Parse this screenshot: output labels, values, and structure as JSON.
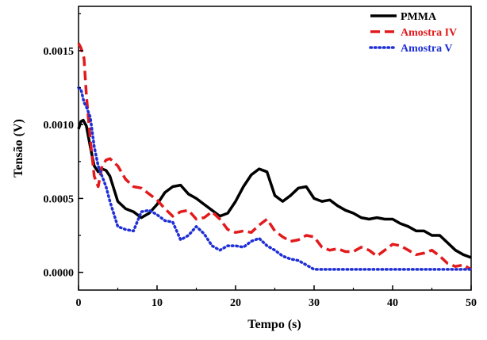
{
  "chart_data": {
    "type": "line",
    "xlabel": "Tempo (s)",
    "ylabel": "Tensão (V)",
    "xlim": [
      0,
      50
    ],
    "ylim": [
      -0.00012,
      0.0018
    ],
    "xticks": [
      {
        "value": 0,
        "label": "0"
      },
      {
        "value": 10,
        "label": "10"
      },
      {
        "value": 20,
        "label": "20"
      },
      {
        "value": 30,
        "label": "30"
      },
      {
        "value": 40,
        "label": "40"
      },
      {
        "value": 50,
        "label": "50"
      }
    ],
    "yticks": [
      {
        "value": 0,
        "label": "0.0000"
      },
      {
        "value": 0.0005,
        "label": "0.0005"
      },
      {
        "value": 0.001,
        "label": "0.0010"
      },
      {
        "value": 0.0015,
        "label": "0.0015"
      }
    ],
    "grid": false,
    "legend_position": "top-right",
    "series": [
      {
        "name": "PMMA",
        "color": "#000000",
        "style": "solid",
        "x": [
          0,
          0.3,
          0.6,
          1,
          1.5,
          2,
          2.5,
          3,
          3.5,
          4,
          5,
          6,
          7,
          8,
          9,
          10,
          11,
          12,
          13,
          14,
          15,
          16,
          17,
          18,
          19,
          20,
          21,
          22,
          23,
          24,
          25,
          26,
          27,
          28,
          29,
          30,
          31,
          32,
          33,
          34,
          35,
          36,
          37,
          38,
          39,
          40,
          41,
          42,
          43,
          44,
          45,
          46,
          47,
          48,
          49,
          50
        ],
        "y": [
          0.00097,
          0.00102,
          0.00103,
          0.00099,
          0.00085,
          0.00072,
          0.00068,
          0.0007,
          0.00069,
          0.00065,
          0.00048,
          0.00043,
          0.00041,
          0.00037,
          0.0004,
          0.00046,
          0.00054,
          0.00058,
          0.00059,
          0.00053,
          0.0005,
          0.00046,
          0.00042,
          0.00038,
          0.0004,
          0.00048,
          0.00058,
          0.00066,
          0.0007,
          0.00068,
          0.00052,
          0.00048,
          0.00052,
          0.00057,
          0.00058,
          0.0005,
          0.00048,
          0.00049,
          0.00045,
          0.00042,
          0.0004,
          0.00037,
          0.00036,
          0.00037,
          0.00036,
          0.00036,
          0.00033,
          0.00031,
          0.00028,
          0.00028,
          0.00025,
          0.00025,
          0.0002,
          0.00015,
          0.00012,
          0.0001
        ]
      },
      {
        "name": "Amostra IV",
        "color": "#e31a1c",
        "style": "dashed",
        "x": [
          0,
          0.3,
          0.7,
          1,
          1.5,
          2,
          2.5,
          3,
          3.5,
          4,
          5,
          6,
          7,
          8,
          9,
          10,
          11,
          12,
          13,
          14,
          15,
          16,
          17,
          18,
          19,
          20,
          21,
          22,
          23,
          24,
          25,
          26,
          27,
          28,
          29,
          30,
          31,
          32,
          33,
          34,
          35,
          36,
          37,
          38,
          39,
          40,
          41,
          42,
          43,
          44,
          45,
          46,
          47,
          48,
          49,
          50
        ],
        "y": [
          0.00155,
          0.00152,
          0.00145,
          0.0012,
          0.0009,
          0.00065,
          0.00058,
          0.00072,
          0.00076,
          0.00077,
          0.00072,
          0.00063,
          0.00058,
          0.00057,
          0.00053,
          0.00049,
          0.00043,
          0.00038,
          0.00041,
          0.00042,
          0.00036,
          0.00037,
          0.00041,
          0.00036,
          0.00029,
          0.00027,
          0.00028,
          0.00027,
          0.00032,
          0.00036,
          0.00028,
          0.00024,
          0.00021,
          0.00022,
          0.00025,
          0.00024,
          0.00017,
          0.00015,
          0.00016,
          0.00014,
          0.00014,
          0.00017,
          0.00015,
          0.00011,
          0.00015,
          0.00019,
          0.00018,
          0.00015,
          0.00012,
          0.00013,
          0.00015,
          0.00011,
          6e-05,
          4e-05,
          5e-05,
          2e-05
        ]
      },
      {
        "name": "Amostra V",
        "color": "#1f2fd6",
        "style": "dotted",
        "x": [
          0,
          0.3,
          0.7,
          1,
          1.5,
          2,
          2.5,
          3,
          3.5,
          4,
          5,
          6,
          7,
          8,
          9,
          10,
          11,
          12,
          13,
          14,
          15,
          16,
          17,
          18,
          19,
          20,
          21,
          22,
          23,
          24,
          25,
          26,
          27,
          28,
          29,
          30,
          32,
          35,
          40,
          45,
          50
        ],
        "y": [
          0.00125,
          0.00124,
          0.00115,
          0.00112,
          0.00105,
          0.00085,
          0.00072,
          0.00065,
          0.00058,
          0.00048,
          0.00031,
          0.00029,
          0.00028,
          0.00041,
          0.00042,
          0.00039,
          0.00035,
          0.00034,
          0.00022,
          0.00025,
          0.00031,
          0.00026,
          0.00018,
          0.00015,
          0.00018,
          0.00018,
          0.00017,
          0.00021,
          0.00023,
          0.00018,
          0.00015,
          0.00011,
          9e-05,
          8e-05,
          5e-05,
          2e-05,
          2e-05,
          2e-05,
          2e-05,
          2e-05,
          2e-05
        ]
      }
    ]
  }
}
